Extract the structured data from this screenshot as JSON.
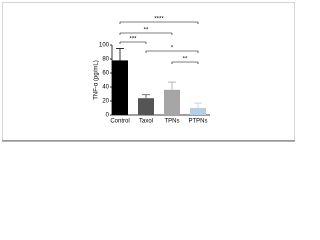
{
  "chart_data": {
    "type": "bar",
    "y_label": "TNF-α (pg/mL)",
    "categories": [
      "Control",
      "Taxol",
      "TPNs",
      "PTPNs"
    ],
    "values": [
      78,
      24,
      36,
      10
    ],
    "errors": [
      17,
      5,
      11,
      7
    ],
    "colors": [
      "#000000",
      "#555555",
      "#a6a6a6",
      "#b8cce4"
    ],
    "ylim": [
      0,
      100
    ],
    "yticks": [
      0,
      20,
      40,
      60,
      80,
      100
    ],
    "annotations": [
      "****",
      "**",
      "***",
      "*",
      "**"
    ]
  }
}
